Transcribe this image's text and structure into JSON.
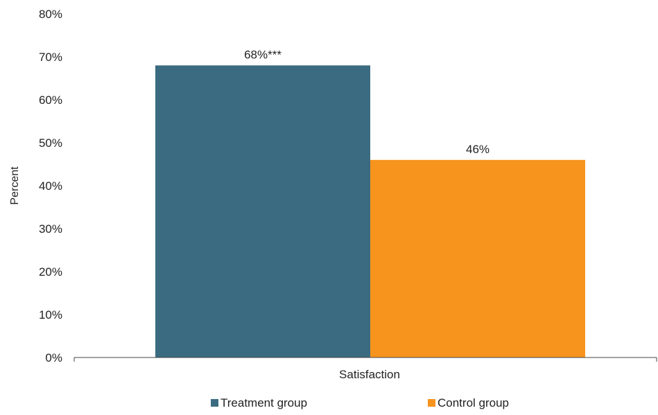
{
  "chart_data": {
    "type": "bar",
    "categories": [
      "Satisfaction"
    ],
    "series": [
      {
        "name": "Treatment group",
        "values": [
          68
        ],
        "label": "68%***",
        "color": "#3b6b80"
      },
      {
        "name": "Control group",
        "values": [
          46
        ],
        "label": "46%",
        "color": "#f7941d"
      }
    ],
    "ylabel": "Percent",
    "ylim": [
      0,
      80
    ],
    "yticks": [
      0,
      10,
      20,
      30,
      40,
      50,
      60,
      70,
      80
    ],
    "ytick_labels": [
      "0%",
      "10%",
      "20%",
      "30%",
      "40%",
      "50%",
      "60%",
      "70%",
      "80%"
    ],
    "grid": false,
    "legend": {
      "position": "bottom"
    }
  }
}
